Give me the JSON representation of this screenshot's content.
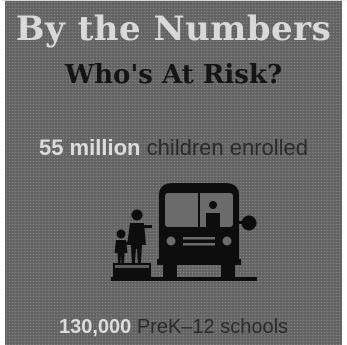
{
  "heading": "By the Numbers",
  "subheading": "Who's At Risk?",
  "stats": [
    {
      "value": "55 million",
      "label": "children enrolled"
    },
    {
      "value": "130,000",
      "label": "PreK–12 schools"
    }
  ],
  "illustration": {
    "icon": "school-bus-with-children-icon",
    "color": "#0d0d0d"
  },
  "colors": {
    "background": "#6f6f6f",
    "heading": "#d9d9d9",
    "subheading": "#141414",
    "stat_value": "#dcdcdc",
    "stat_label": "#2b2b2b"
  }
}
